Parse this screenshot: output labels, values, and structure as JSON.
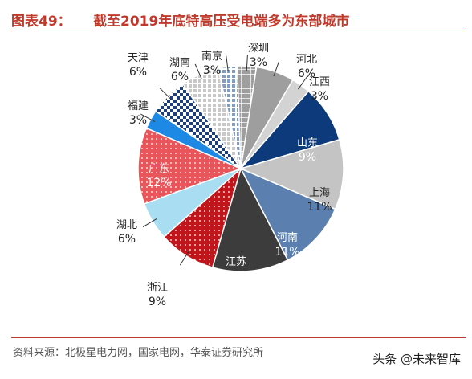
{
  "header": {
    "prefix": "图表49：",
    "title": "截至2019年底特高压受电端多为东部城市"
  },
  "chart_data": {
    "type": "pie",
    "title": "截至2019年底特高压受电端多为东部城市",
    "unit": "%",
    "slices": [
      {
        "label": "深圳",
        "value": 3,
        "pct": "3%",
        "color": "#9e9e9e",
        "pattern": "grid"
      },
      {
        "label": "河北",
        "value": 6,
        "pct": "6%",
        "color": "#9e9e9e",
        "pattern": "solid"
      },
      {
        "label": "江西",
        "value": 3,
        "pct": "3%",
        "color": "#d3d3d3",
        "pattern": "solid"
      },
      {
        "label": "山东",
        "value": 9,
        "pct": "9%",
        "color": "#0d3a7a",
        "pattern": "solid"
      },
      {
        "label": "上海",
        "value": 11,
        "pct": "11%",
        "color": "#c4c4c4",
        "pattern": "solid"
      },
      {
        "label": "河南",
        "value": 11,
        "pct": "11%",
        "color": "#5b7fae",
        "pattern": "solid"
      },
      {
        "label": "江苏",
        "value": 12,
        "pct": "12%",
        "color": "#3c3c3c",
        "pattern": "solid"
      },
      {
        "label": "浙江",
        "value": 9,
        "pct": "9%",
        "color": "#c0161b",
        "pattern": "dots"
      },
      {
        "label": "湖北",
        "value": 6,
        "pct": "6%",
        "color": "#a9ddf2",
        "pattern": "solid"
      },
      {
        "label": "广东",
        "value": 12,
        "pct": "12%",
        "color": "#e8555a",
        "pattern": "dots"
      },
      {
        "label": "福建",
        "value": 3,
        "pct": "3%",
        "color": "#1e88e5",
        "pattern": "solid"
      },
      {
        "label": "天津",
        "value": 6,
        "pct": "6%",
        "color": "#1f3f7a",
        "pattern": "check"
      },
      {
        "label": "湖南",
        "value": 6,
        "pct": "6%",
        "color": "#c8c8c8",
        "pattern": "lightgrid"
      },
      {
        "label": "南京",
        "value": 3,
        "pct": "3%",
        "color": "#7f9cc6",
        "pattern": "lightgrid"
      }
    ],
    "legend": "none"
  },
  "footer": {
    "source": "资料来源：北极星电力网，国家电网，华泰证券研究所",
    "watermark": "头条 @未来智库"
  }
}
